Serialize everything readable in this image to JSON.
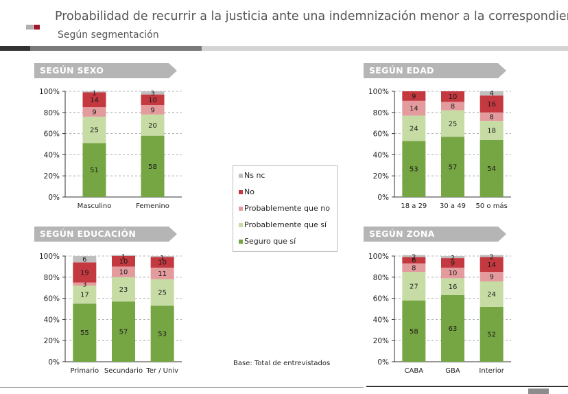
{
  "title": "Probabilidad de recurrir a la justicia ante una indemnización menor a la correspondiente",
  "subtitle": "Según segmentación",
  "base_note": "Base: Total de entrevistados",
  "colors": {
    "seguro_que_si": "#76a543",
    "probablemente_que_si": "#c7dca4",
    "probablemente_que_no": "#e39b9e",
    "no": "#c4383f",
    "ns_nc": "#bfbfbf",
    "banner": "#b5b5b5"
  },
  "legend": {
    "items": [
      {
        "key": "ns_nc",
        "label": "Ns nc",
        "color": "#bfbfbf"
      },
      {
        "key": "no",
        "label": "No",
        "color": "#c4383f"
      },
      {
        "key": "probablemente_que_no",
        "label": "Probablemente que no",
        "color": "#e39b9e"
      },
      {
        "key": "probablemente_que_si",
        "label": "Probablemente que sí",
        "color": "#c7dca4"
      },
      {
        "key": "seguro_que_si",
        "label": "Seguro que sí",
        "color": "#76a543"
      }
    ]
  },
  "chart_data": [
    {
      "type": "bar",
      "stacked": true,
      "title": "SEGÚN SEXO",
      "categories": [
        "Masculino",
        "Femenino"
      ],
      "ylim": [
        0,
        100
      ],
      "yticks": [
        "0%",
        "20%",
        "40%",
        "60%",
        "80%",
        "100%"
      ],
      "series": [
        {
          "name": "Seguro que sí",
          "values": [
            51,
            58
          ]
        },
        {
          "name": "Probablemente que sí",
          "values": [
            25,
            20
          ]
        },
        {
          "name": "Probablemente que no",
          "values": [
            9,
            9
          ]
        },
        {
          "name": "No",
          "values": [
            14,
            10
          ]
        },
        {
          "name": "Ns nc",
          "values": [
            1,
            3
          ]
        }
      ]
    },
    {
      "type": "bar",
      "stacked": true,
      "title": "SEGÚN EDAD",
      "categories": [
        "18 a 29",
        "30 a 49",
        "50 o más"
      ],
      "ylim": [
        0,
        100
      ],
      "yticks": [
        "0%",
        "20%",
        "40%",
        "60%",
        "80%",
        "100%"
      ],
      "series": [
        {
          "name": "Seguro que sí",
          "values": [
            53,
            57,
            54
          ]
        },
        {
          "name": "Probablemente que sí",
          "values": [
            24,
            25,
            18
          ]
        },
        {
          "name": "Probablemente que no",
          "values": [
            14,
            8,
            8
          ]
        },
        {
          "name": "No",
          "values": [
            9,
            10,
            16
          ]
        },
        {
          "name": "Ns nc",
          "values": [
            0,
            0,
            4
          ]
        }
      ]
    },
    {
      "type": "bar",
      "stacked": true,
      "title": "SEGÚN EDUCACIÓN",
      "categories": [
        "Primario",
        "Secundario",
        "Ter / Univ"
      ],
      "ylim": [
        0,
        100
      ],
      "yticks": [
        "0%",
        "20%",
        "40%",
        "60%",
        "80%",
        "100%"
      ],
      "series": [
        {
          "name": "Seguro que sí",
          "values": [
            55,
            57,
            53
          ]
        },
        {
          "name": "Probablemente que sí",
          "values": [
            17,
            23,
            25
          ]
        },
        {
          "name": "Probablemente que no",
          "values": [
            3,
            10,
            11
          ]
        },
        {
          "name": "No",
          "values": [
            19,
            10,
            10
          ]
        },
        {
          "name": "Ns nc",
          "values": [
            6,
            1,
            1
          ]
        }
      ]
    },
    {
      "type": "bar",
      "stacked": true,
      "title": "SEGÚN ZONA",
      "categories": [
        "CABA",
        "GBA",
        "Interior"
      ],
      "ylim": [
        0,
        100
      ],
      "yticks": [
        "0%",
        "20%",
        "40%",
        "60%",
        "80%",
        "100%"
      ],
      "series": [
        {
          "name": "Seguro que sí",
          "values": [
            58,
            63,
            52
          ]
        },
        {
          "name": "Probablemente que sí",
          "values": [
            27,
            16,
            24
          ]
        },
        {
          "name": "Probablemente que no",
          "values": [
            8,
            10,
            9
          ]
        },
        {
          "name": "No",
          "values": [
            6,
            9,
            14
          ]
        },
        {
          "name": "Ns nc",
          "values": [
            2,
            2,
            2
          ]
        }
      ]
    }
  ]
}
